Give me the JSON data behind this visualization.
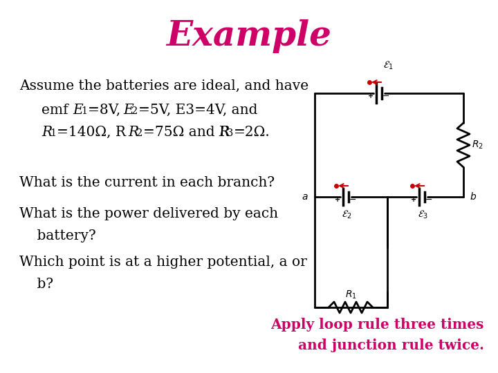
{
  "title": "Example",
  "title_color": "#CC0066",
  "title_fontsize": 36,
  "title_fontstyle": "italic",
  "title_fontweight": "bold",
  "bg_color": "#FFFFFF",
  "text_color": "#000000",
  "magenta_color": "#CC0066",
  "circuit_color": "#000000",
  "red_color": "#CC0000",
  "line1": "Assume the batteries are ideal, and have",
  "q1": "What is the current in each branch?",
  "q2": "What is the power delivered by each",
  "q2b": "    battery?",
  "q3": "Which point is at a higher potential, a or",
  "q3b": "    b?",
  "bottom_line1": "Apply loop rule three times",
  "bottom_line2": "and junction rule twice."
}
